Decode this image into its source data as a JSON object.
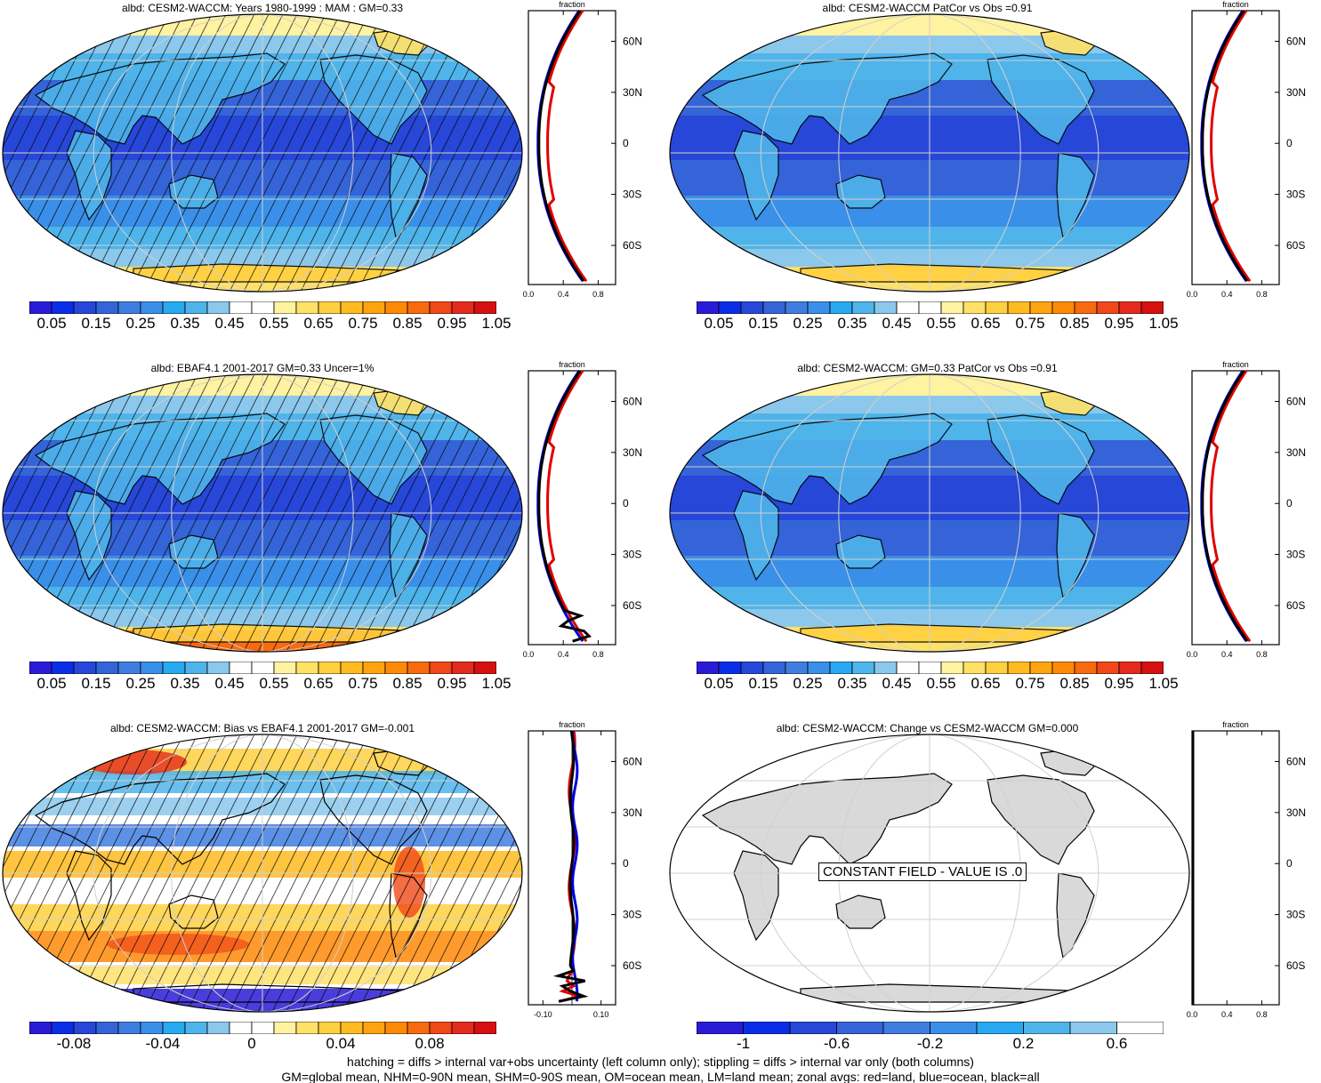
{
  "panels": [
    {
      "title": "albd: CESM2-WACCM: Years 1980-1999 : MAM : GM=0.33",
      "map": "model",
      "zonal_ticks": [
        "0.0",
        "0.4",
        "0.8"
      ],
      "zonal_range": [
        0,
        1.0
      ],
      "zonal_style": "obs",
      "colorbar": "abs",
      "hatch": true
    },
    {
      "title": "albd: CESM2-WACCM PatCor vs Obs =0.91",
      "map": "model",
      "zonal_ticks": [
        "0.0",
        "0.4",
        "0.8"
      ],
      "zonal_range": [
        0,
        1.0
      ],
      "zonal_style": "obs",
      "colorbar": "abs",
      "hatch": false
    },
    {
      "title": "albd: EBAF4.1 2001-2017 GM=0.33 Uncer=1%",
      "map": "obs",
      "zonal_ticks": [
        "0.0",
        "0.4",
        "0.8"
      ],
      "zonal_range": [
        0,
        1.0
      ],
      "zonal_style": "obs2",
      "colorbar": "abs",
      "hatch": true
    },
    {
      "title": "albd: CESM2-WACCM: GM=0.33 PatCor vs Obs =0.91",
      "map": "model",
      "zonal_ticks": [
        "0.0",
        "0.4",
        "0.8"
      ],
      "zonal_range": [
        0,
        1.0
      ],
      "zonal_style": "obs",
      "colorbar": "abs",
      "hatch": false
    },
    {
      "title": "albd: CESM2-WACCM: Bias vs EBAF4.1 2001-2017 GM=-0.001",
      "map": "bias",
      "zonal_ticks": [
        "-0.10",
        "0.10"
      ],
      "zonal_range": [
        -0.15,
        0.15
      ],
      "zonal_style": "bias",
      "colorbar": "bias",
      "hatch": true
    },
    {
      "title": "albd: CESM2-WACCM: Change vs CESM2-WACCM GM=0.000",
      "map": "const",
      "zonal_ticks": [
        "0.0",
        "0.4",
        "0.8"
      ],
      "zonal_range": [
        0,
        1.0
      ],
      "zonal_style": "const",
      "colorbar": "change",
      "hatch": false
    }
  ],
  "zonal_header": "fraction",
  "lat_labels": [
    "60N",
    "30N",
    "0",
    "30S",
    "60S"
  ],
  "constant_label": "CONSTANT FIELD - VALUE IS .0",
  "colorbars": {
    "abs": {
      "labels": [
        "0.05",
        "0.15",
        "0.25",
        "0.35",
        "0.45",
        "0.55",
        "0.65",
        "0.75",
        "0.85",
        "0.95",
        "1.05"
      ],
      "colors": [
        "#2a1bd8",
        "#0a2ee8",
        "#2747d8",
        "#3564d8",
        "#3f7ee0",
        "#3a8fe8",
        "#28a8f0",
        "#4fb4ea",
        "#8cc8ec",
        "#ffffff",
        "#ffffff",
        "#fff2a0",
        "#ffe168",
        "#ffd040",
        "#ffbb20",
        "#ffa410",
        "#ff8a08",
        "#f86a10",
        "#f04818",
        "#e42a1c",
        "#d61010"
      ]
    },
    "bias": {
      "labels": [
        "-0.08",
        "-0.04",
        "0",
        "0.04",
        "0.08"
      ],
      "colors": [
        "#2a1bd8",
        "#0a2ee8",
        "#2747d8",
        "#3564d8",
        "#3f7ee0",
        "#3a8fe8",
        "#28a8f0",
        "#4fb4ea",
        "#8cc8ec",
        "#ffffff",
        "#ffffff",
        "#fff2a0",
        "#ffe168",
        "#ffd040",
        "#ffbb20",
        "#ffa410",
        "#ff8a08",
        "#f86a10",
        "#f04818",
        "#e42a1c",
        "#d61010"
      ]
    },
    "change": {
      "labels": [
        "-1",
        "-0.6",
        "-0.2",
        "0.2",
        "0.6"
      ],
      "colors": [
        "#2a1bd8",
        "#0a2ee8",
        "#2747d8",
        "#3564d8",
        "#3f7ee0",
        "#3a8fe8",
        "#28a8f0",
        "#4fb4ea",
        "#8cc8ec",
        "#ffffff"
      ]
    }
  },
  "footer": {
    "line1": "hatching = diffs > internal var+obs uncertainty (left column only); stippling = diffs > internal var only (both columns)",
    "line2": "GM=global mean, NHM=0-90N mean, SHM=0-90S mean, OM=ocean mean, LM=land mean; zonal avgs: red=land, blue=ocean, black=all"
  }
}
